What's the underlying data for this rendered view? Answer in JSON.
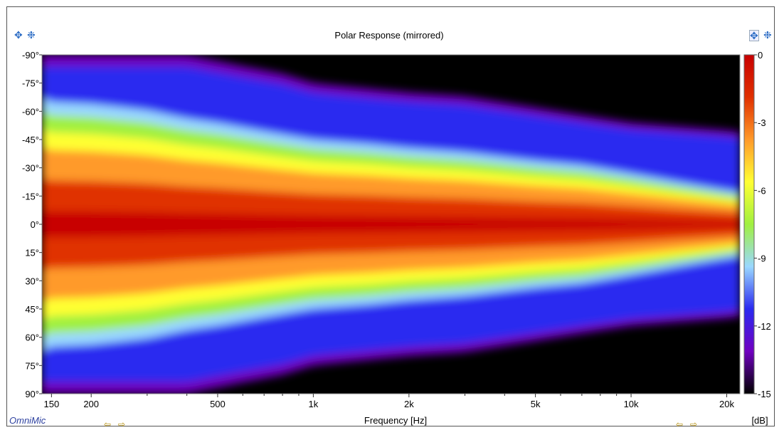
{
  "chart_data": {
    "type": "heatmap",
    "title": "Polar Response (mirrored)",
    "xlabel": "Frequency [Hz]",
    "ylabel": "",
    "x_scale": "log",
    "xlim": [
      140,
      22000
    ],
    "x_ticks": [
      {
        "value": 150,
        "label": "150"
      },
      {
        "value": 200,
        "label": "200"
      },
      {
        "value": 500,
        "label": "500"
      },
      {
        "value": 1000,
        "label": "1k"
      },
      {
        "value": 2000,
        "label": "2k"
      },
      {
        "value": 5000,
        "label": "5k"
      },
      {
        "value": 10000,
        "label": "10k"
      },
      {
        "value": 20000,
        "label": "20k"
      }
    ],
    "ylim": [
      -90,
      90
    ],
    "y_ticks": [
      {
        "value": -90,
        "label": "-90°"
      },
      {
        "value": -75,
        "label": "-75°"
      },
      {
        "value": -60,
        "label": "-60°"
      },
      {
        "value": -45,
        "label": "-45°"
      },
      {
        "value": -30,
        "label": "-30°"
      },
      {
        "value": -15,
        "label": "-15°"
      },
      {
        "value": 0,
        "label": "0°"
      },
      {
        "value": 15,
        "label": "15°"
      },
      {
        "value": 30,
        "label": "30°"
      },
      {
        "value": 45,
        "label": "45°"
      },
      {
        "value": 60,
        "label": "60°"
      },
      {
        "value": 75,
        "label": "75°"
      },
      {
        "value": 90,
        "label": "90°"
      }
    ],
    "colorbar": {
      "unit": "[dB]",
      "range": [
        -15,
        0
      ],
      "ticks": [
        {
          "value": 0,
          "label": "0"
        },
        {
          "value": -3,
          "label": "-3"
        },
        {
          "value": -6,
          "label": "-6"
        },
        {
          "value": -9,
          "label": "-9"
        },
        {
          "value": -12,
          "label": "-12"
        },
        {
          "value": -15,
          "label": "-15"
        }
      ],
      "colors": [
        "#000000",
        "#7000c0",
        "#2a2af0",
        "#9ad8ff",
        "#a0f040",
        "#ffff33",
        "#ff9a2a",
        "#e03000",
        "#c80000"
      ]
    },
    "contour_minus6db_angle": {
      "freq": [
        140,
        150,
        200,
        300,
        400,
        500,
        700,
        1000,
        1500,
        2000,
        3000,
        5000,
        7000,
        10000,
        14000,
        20000,
        22000
      ],
      "angle": [
        60,
        58,
        57,
        54,
        50,
        48,
        44,
        40,
        38,
        36,
        34,
        30,
        28,
        24,
        20,
        16,
        15
      ]
    },
    "black_region_edge_angle": {
      "freq": [
        140,
        400,
        600,
        800,
        1000,
        1500,
        2000,
        3000,
        5000,
        7000,
        10000,
        14000,
        20000,
        22000
      ],
      "angle": [
        90,
        90,
        84,
        80,
        75,
        72,
        70,
        68,
        62,
        58,
        54,
        52,
        50,
        49
      ]
    }
  },
  "ui": {
    "brand": "OmniMic",
    "zoom_icon": "zoom-icon",
    "pan_icon": "pan-icon",
    "scroll_left_icon": "scroll-left-icon",
    "scroll_right_icon": "scroll-right-icon"
  }
}
